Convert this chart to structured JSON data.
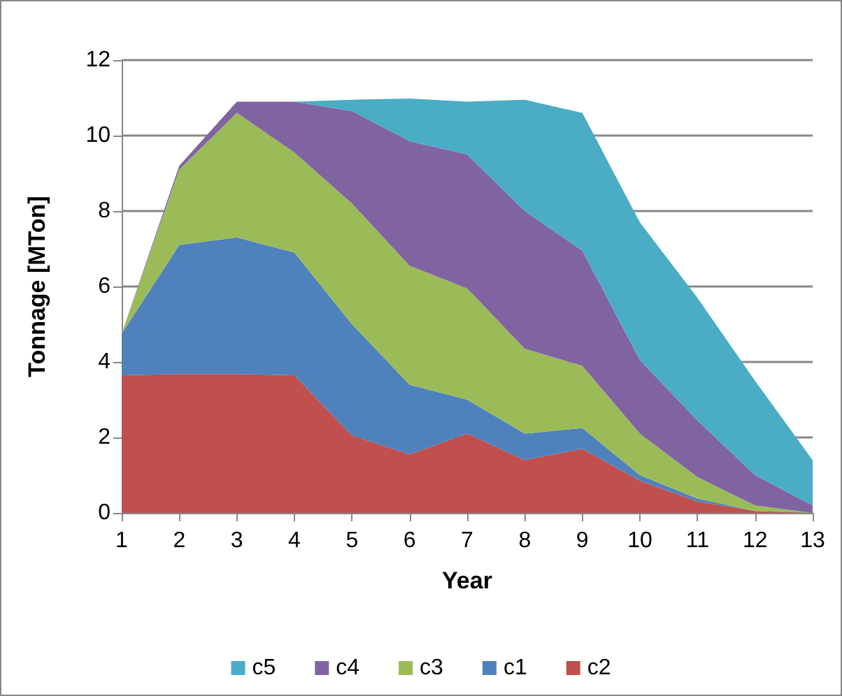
{
  "chart_data": {
    "type": "area",
    "stacked": true,
    "xlabel": "Year",
    "ylabel": "Tonnage [MTon]",
    "categories": [
      "1",
      "2",
      "3",
      "4",
      "5",
      "6",
      "7",
      "8",
      "9",
      "10",
      "11",
      "12",
      "13"
    ],
    "ylim": [
      0,
      12
    ],
    "yticks": [
      0,
      2,
      4,
      6,
      8,
      10,
      12
    ],
    "grid": "y",
    "legend": "bottom",
    "series": [
      {
        "name": "c2",
        "color": "#c0504d",
        "values": [
          3.65,
          3.68,
          3.68,
          3.65,
          2.05,
          1.55,
          2.1,
          1.4,
          1.7,
          0.85,
          0.3,
          0.05,
          0
        ]
      },
      {
        "name": "c1",
        "color": "#4f81bd",
        "values": [
          1.1,
          3.42,
          3.62,
          3.25,
          2.95,
          1.85,
          0.9,
          0.7,
          0.55,
          0.15,
          0.08,
          0,
          0
        ]
      },
      {
        "name": "c3",
        "color": "#9bbb59",
        "values": [
          0,
          2.0,
          3.3,
          2.65,
          3.2,
          3.15,
          2.95,
          2.25,
          1.65,
          1.1,
          0.57,
          0.15,
          0
        ]
      },
      {
        "name": "c4",
        "color": "#8064a2",
        "values": [
          0,
          0.1,
          0.3,
          1.35,
          2.45,
          3.3,
          3.55,
          3.65,
          3.05,
          1.95,
          1.5,
          0.8,
          0.2
        ]
      },
      {
        "name": "c5",
        "color": "#4bacc6",
        "values": [
          0,
          0,
          0,
          0,
          0.3,
          1.13,
          1.4,
          2.95,
          3.65,
          3.65,
          3.25,
          2.5,
          1.2
        ]
      }
    ]
  }
}
